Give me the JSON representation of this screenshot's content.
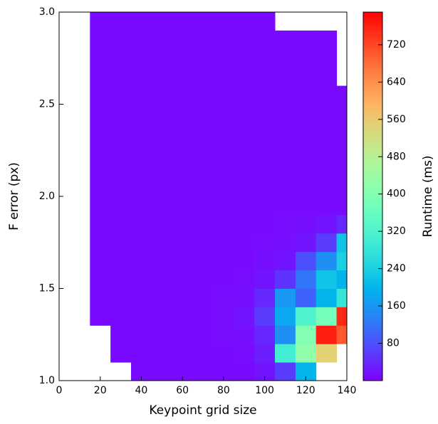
{
  "chart_data": {
    "type": "heatmap",
    "xlabel": "Keypoint grid size",
    "ylabel": "F error (px)",
    "xlim": [
      0,
      140
    ],
    "ylim": [
      1,
      3
    ],
    "xticks": [
      0,
      20,
      40,
      60,
      80,
      100,
      120,
      140
    ],
    "yticks": [
      {
        "value": 1,
        "label": "1.0"
      },
      {
        "value": 1.5,
        "label": "1.5"
      },
      {
        "value": 2,
        "label": "2.0"
      },
      {
        "value": 2.5,
        "label": "2.5"
      },
      {
        "value": 3,
        "label": "3.0"
      }
    ],
    "colormap": "rainbow",
    "x_edges": [
      15,
      25,
      35,
      45,
      55,
      65,
      75,
      85,
      95,
      105,
      115,
      125,
      135,
      140
    ],
    "y_edges": [
      1.0,
      1.1,
      1.2,
      1.3,
      1.4,
      1.5,
      1.6,
      1.7,
      1.8,
      1.9,
      2.0,
      2.1,
      2.2,
      2.3,
      2.4,
      2.5,
      2.6,
      2.7,
      2.8,
      2.9,
      3.0
    ],
    "z": [
      [
        null,
        null,
        10,
        10,
        10,
        10,
        10,
        10,
        20,
        60,
        200,
        null,
        null
      ],
      [
        null,
        10,
        10,
        10,
        10,
        10,
        10,
        12,
        30,
        300,
        420,
        550,
        null
      ],
      [
        null,
        10,
        10,
        10,
        10,
        10,
        12,
        15,
        40,
        150,
        400,
        760,
        700
      ],
      [
        10,
        10,
        10,
        10,
        10,
        10,
        12,
        20,
        60,
        180,
        320,
        380,
        750
      ],
      [
        10,
        10,
        10,
        10,
        10,
        10,
        12,
        15,
        40,
        160,
        100,
        200,
        280
      ],
      [
        10,
        10,
        10,
        10,
        10,
        10,
        10,
        12,
        20,
        50,
        120,
        220,
        200
      ],
      [
        10,
        10,
        10,
        10,
        10,
        10,
        10,
        10,
        15,
        20,
        80,
        150,
        240
      ],
      [
        10,
        10,
        10,
        10,
        10,
        10,
        10,
        10,
        12,
        15,
        20,
        60,
        220
      ],
      [
        10,
        10,
        10,
        10,
        10,
        10,
        10,
        10,
        10,
        12,
        15,
        20,
        40
      ],
      [
        10,
        10,
        10,
        10,
        10,
        10,
        10,
        10,
        10,
        10,
        10,
        10,
        10
      ],
      [
        10,
        10,
        10,
        10,
        10,
        10,
        10,
        10,
        10,
        10,
        10,
        10,
        10
      ],
      [
        10,
        10,
        10,
        10,
        10,
        10,
        10,
        10,
        10,
        10,
        10,
        10,
        10
      ],
      [
        10,
        10,
        10,
        10,
        10,
        10,
        10,
        10,
        10,
        10,
        10,
        10,
        10
      ],
      [
        10,
        10,
        10,
        10,
        10,
        10,
        10,
        10,
        10,
        10,
        10,
        10,
        10
      ],
      [
        10,
        10,
        10,
        10,
        10,
        10,
        10,
        10,
        10,
        10,
        10,
        10,
        10
      ],
      [
        10,
        10,
        10,
        10,
        10,
        10,
        10,
        10,
        10,
        10,
        10,
        10,
        10
      ],
      [
        10,
        10,
        10,
        10,
        10,
        10,
        10,
        10,
        10,
        10,
        10,
        10,
        null
      ],
      [
        10,
        10,
        10,
        10,
        10,
        10,
        10,
        10,
        10,
        10,
        10,
        10,
        null
      ],
      [
        10,
        10,
        10,
        10,
        10,
        10,
        10,
        10,
        10,
        10,
        10,
        10,
        null
      ],
      [
        10,
        10,
        10,
        10,
        10,
        10,
        10,
        10,
        10,
        null,
        null,
        null,
        null
      ]
    ],
    "colorbar": {
      "label": "Runtime  (ms)",
      "lim": [
        0,
        790
      ],
      "ticks": [
        80,
        160,
        240,
        320,
        400,
        480,
        560,
        640,
        720
      ]
    }
  }
}
